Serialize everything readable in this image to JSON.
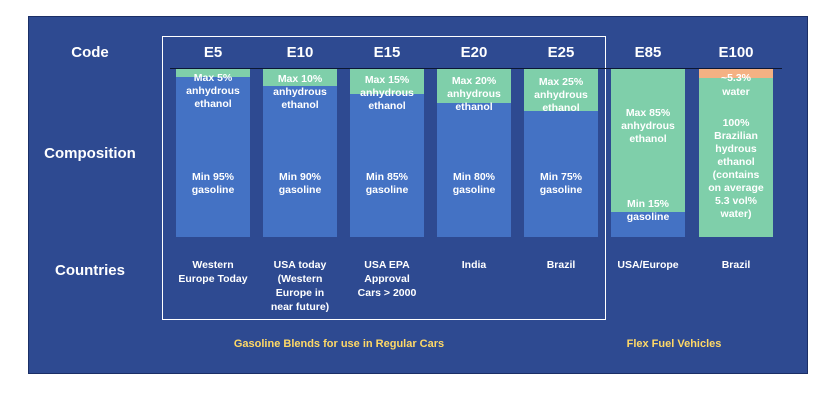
{
  "colors": {
    "background": "#2e4a91",
    "gasoline": "#4472c4",
    "ethanol": "#7fcfaa",
    "water": "#f4b183",
    "footer_text": "#ffd966",
    "text": "#ffffff"
  },
  "row_labels": {
    "code": "Code",
    "composition": "Composition",
    "countries": "Countries"
  },
  "blends": [
    {
      "code": "E5",
      "ethanol_pct": 5,
      "ethanol_label": [
        "Max 5%",
        "anhydrous",
        "ethanol"
      ],
      "gasoline_label": [
        "Min 95%",
        "gasoline"
      ],
      "country": [
        "Western",
        "Europe Today"
      ]
    },
    {
      "code": "E10",
      "ethanol_pct": 10,
      "ethanol_label": [
        "Max 10%",
        "anhydrous",
        "ethanol"
      ],
      "gasoline_label": [
        "Min 90%",
        "gasoline"
      ],
      "country": [
        "USA today",
        "(Western",
        "Europe in",
        "near future)"
      ]
    },
    {
      "code": "E15",
      "ethanol_pct": 15,
      "ethanol_label": [
        "Max 15%",
        "anhydrous",
        "ethanol"
      ],
      "gasoline_label": [
        "Min 85%",
        "gasoline"
      ],
      "country": [
        "USA EPA",
        "Approval",
        "Cars > 2000"
      ]
    },
    {
      "code": "E20",
      "ethanol_pct": 20,
      "ethanol_label": [
        "Max 20%",
        "anhydrous",
        "ethanol"
      ],
      "gasoline_label": [
        "Min 80%",
        "gasoline"
      ],
      "country": [
        "India"
      ]
    },
    {
      "code": "E25",
      "ethanol_pct": 25,
      "ethanol_label": [
        "Max 25%",
        "anhydrous",
        "ethanol"
      ],
      "gasoline_label": [
        "Min 75%",
        "gasoline"
      ],
      "country": [
        "Brazil"
      ]
    },
    {
      "code": "E85",
      "ethanol_pct": 85,
      "ethanol_label": [
        "Max 85%",
        "anhydrous",
        "ethanol"
      ],
      "gasoline_label": [
        "Min 15%",
        "gasoline"
      ],
      "country": [
        "USA/Europe"
      ]
    },
    {
      "code": "E100",
      "water_pct": 5.3,
      "water_label": [
        "~5.3%",
        "water"
      ],
      "ethanol_label": [
        "100%",
        "Brazilian",
        "hydrous",
        "ethanol",
        "(contains",
        "on average",
        "5.3 vol%",
        "water)"
      ],
      "country": [
        "Brazil"
      ]
    }
  ],
  "footer": {
    "regular": "Gasoline Blends for use in Regular Cars",
    "flex": "Flex Fuel Vehicles"
  }
}
